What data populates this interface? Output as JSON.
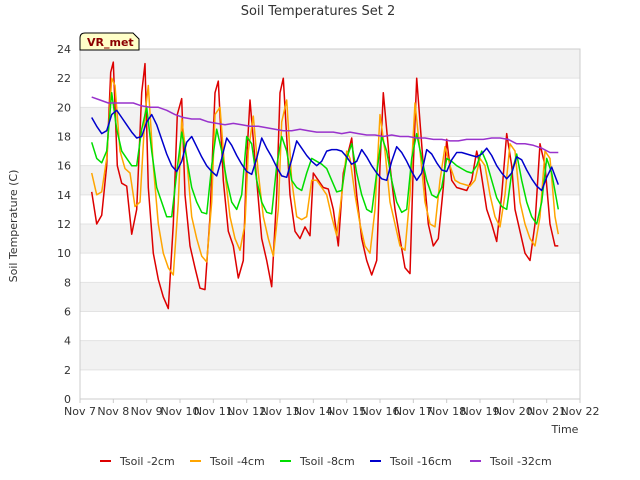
{
  "chart_data": {
    "type": "line",
    "title": "Soil Temperatures Set 2",
    "xlabel": "Time",
    "ylabel": "Soil Temperature (C)",
    "badge": "VR_met",
    "ylim": [
      0,
      24
    ],
    "yticks": [
      "0",
      "2",
      "4",
      "6",
      "8",
      "10",
      "12",
      "14",
      "16",
      "18",
      "20",
      "22",
      "24"
    ],
    "xticks": [
      "Nov 7",
      "Nov 8",
      "Nov 9",
      "Nov 10",
      "Nov 11",
      "Nov 12",
      "Nov 13",
      "Nov 14",
      "Nov 15",
      "Nov 16",
      "Nov 17",
      "Nov 18",
      "Nov 19",
      "Nov 20",
      "Nov 21",
      "Nov 22"
    ],
    "xlim": [
      7,
      22
    ],
    "grid": "horizontal-bands",
    "legend_position": "bottom",
    "series": [
      {
        "name": "Tsoil -2cm",
        "color": "#dd0000",
        "x": [
          7.35,
          7.5,
          7.65,
          7.8,
          7.92,
          8.0,
          8.12,
          8.25,
          8.4,
          8.55,
          8.7,
          8.85,
          8.95,
          9.05,
          9.2,
          9.35,
          9.5,
          9.65,
          9.8,
          9.92,
          10.05,
          10.15,
          10.3,
          10.45,
          10.6,
          10.75,
          10.9,
          11.05,
          11.15,
          11.3,
          11.45,
          11.6,
          11.75,
          11.9,
          12.0,
          12.1,
          12.3,
          12.45,
          12.6,
          12.75,
          12.9,
          13.0,
          13.1,
          13.3,
          13.45,
          13.6,
          13.75,
          13.9,
          14.0,
          14.15,
          14.3,
          14.45,
          14.6,
          14.75,
          14.9,
          15.0,
          15.15,
          15.3,
          15.45,
          15.6,
          15.75,
          15.9,
          16.0,
          16.1,
          16.3,
          16.45,
          16.6,
          16.75,
          16.9,
          17.0,
          17.1,
          17.3,
          17.45,
          17.6,
          17.75,
          17.9,
          18.0,
          18.15,
          18.3,
          18.45,
          18.6,
          18.75,
          18.9,
          19.0,
          19.2,
          19.35,
          19.5,
          19.65,
          19.8,
          19.95,
          20.05,
          20.2,
          20.35,
          20.5,
          20.65,
          20.8,
          20.95,
          21.1,
          21.25,
          21.35
        ],
        "y": [
          14.2,
          12.0,
          12.6,
          16.0,
          22.4,
          23.1,
          16.0,
          14.8,
          14.6,
          11.3,
          13.0,
          21.0,
          23.0,
          14.5,
          10.0,
          8.2,
          7.0,
          6.2,
          12.0,
          19.5,
          20.6,
          14.0,
          10.5,
          9.0,
          7.6,
          7.5,
          12.5,
          21.0,
          21.8,
          15.0,
          11.5,
          10.5,
          8.3,
          9.5,
          16.5,
          20.5,
          15.0,
          11.0,
          9.5,
          7.7,
          14.0,
          21.0,
          22.0,
          14.0,
          11.5,
          11.0,
          11.8,
          11.2,
          15.5,
          15.0,
          14.5,
          14.4,
          13.0,
          10.5,
          15.5,
          16.5,
          17.9,
          14.0,
          11.0,
          9.5,
          8.5,
          9.5,
          16.0,
          21.0,
          16.0,
          13.0,
          11.0,
          9.0,
          8.6,
          16.0,
          22.0,
          16.0,
          12.0,
          10.5,
          11.0,
          14.5,
          17.8,
          15.0,
          14.5,
          14.4,
          14.3,
          15.0,
          17.0,
          16.0,
          13.0,
          12.0,
          10.8,
          14.0,
          18.2,
          16.0,
          13.0,
          11.5,
          10.0,
          9.5,
          12.0,
          17.5,
          16.0,
          12.0,
          10.5,
          10.5
        ]
      },
      {
        "name": "Tsoil -4cm",
        "color": "#ffa500",
        "x": [
          7.35,
          7.5,
          7.65,
          7.8,
          7.95,
          8.05,
          8.2,
          8.35,
          8.5,
          8.65,
          8.8,
          8.95,
          9.05,
          9.2,
          9.35,
          9.5,
          9.65,
          9.8,
          9.95,
          10.05,
          10.2,
          10.35,
          10.5,
          10.65,
          10.8,
          10.95,
          11.05,
          11.2,
          11.35,
          11.5,
          11.65,
          11.8,
          11.95,
          12.05,
          12.2,
          12.35,
          12.5,
          12.65,
          12.8,
          12.95,
          13.05,
          13.2,
          13.35,
          13.5,
          13.65,
          13.8,
          13.95,
          14.1,
          14.25,
          14.4,
          14.55,
          14.7,
          14.85,
          15.0,
          15.1,
          15.25,
          15.4,
          15.55,
          15.7,
          15.85,
          16.0,
          16.15,
          16.3,
          16.45,
          16.6,
          16.75,
          16.9,
          17.05,
          17.2,
          17.35,
          17.5,
          17.65,
          17.8,
          17.95,
          18.1,
          18.25,
          18.4,
          18.55,
          18.7,
          18.85,
          19.0,
          19.15,
          19.3,
          19.45,
          19.6,
          19.75,
          19.9,
          20.05,
          20.2,
          20.35,
          20.5,
          20.65,
          20.8,
          20.95,
          21.1,
          21.25,
          21.35
        ],
        "y": [
          15.5,
          14.0,
          14.2,
          16.5,
          22.0,
          21.5,
          17.0,
          15.8,
          15.5,
          13.2,
          13.5,
          19.5,
          21.5,
          16.0,
          12.0,
          10.0,
          9.0,
          8.5,
          13.5,
          19.2,
          16.5,
          12.5,
          11.0,
          9.8,
          9.4,
          13.5,
          19.5,
          20.0,
          15.5,
          12.5,
          11.0,
          10.2,
          12.0,
          17.0,
          19.4,
          15.5,
          12.5,
          11.0,
          9.8,
          13.0,
          19.0,
          20.5,
          15.0,
          12.5,
          12.3,
          12.5,
          15.0,
          15.0,
          14.5,
          14.0,
          12.5,
          11.2,
          14.0,
          17.0,
          16.5,
          14.0,
          12.0,
          10.5,
          10.0,
          13.0,
          19.5,
          17.0,
          13.5,
          12.0,
          10.5,
          10.2,
          14.0,
          20.3,
          17.0,
          13.5,
          12.0,
          11.8,
          15.0,
          17.3,
          16.0,
          15.0,
          14.8,
          14.7,
          14.6,
          15.0,
          16.5,
          16.0,
          14.0,
          12.5,
          11.8,
          14.0,
          17.5,
          17.0,
          13.5,
          12.0,
          11.0,
          10.5,
          12.5,
          17.0,
          16.5,
          12.5,
          11.3
        ]
      },
      {
        "name": "Tsoil -8cm",
        "color": "#00dd00",
        "x": [
          7.35,
          7.5,
          7.65,
          7.8,
          7.95,
          8.1,
          8.25,
          8.4,
          8.55,
          8.7,
          8.85,
          9.0,
          9.15,
          9.3,
          9.45,
          9.6,
          9.75,
          9.9,
          10.05,
          10.2,
          10.35,
          10.5,
          10.65,
          10.8,
          10.95,
          11.1,
          11.25,
          11.4,
          11.55,
          11.7,
          11.85,
          12.0,
          12.15,
          12.3,
          12.45,
          12.6,
          12.75,
          12.9,
          13.05,
          13.2,
          13.35,
          13.5,
          13.65,
          13.8,
          13.95,
          14.1,
          14.25,
          14.4,
          14.55,
          14.7,
          14.85,
          15.0,
          15.15,
          15.3,
          15.45,
          15.6,
          15.75,
          15.9,
          16.05,
          16.2,
          16.35,
          16.5,
          16.65,
          16.8,
          16.95,
          17.1,
          17.25,
          17.4,
          17.55,
          17.7,
          17.85,
          18.0,
          18.15,
          18.3,
          18.45,
          18.6,
          18.75,
          18.9,
          19.05,
          19.2,
          19.35,
          19.5,
          19.65,
          19.8,
          19.95,
          20.1,
          20.25,
          20.4,
          20.55,
          20.7,
          20.85,
          21.0,
          21.15,
          21.35
        ],
        "y": [
          17.6,
          16.5,
          16.2,
          17.0,
          21.0,
          18.5,
          17.0,
          16.5,
          16.0,
          16.0,
          18.5,
          20.0,
          17.0,
          14.5,
          13.5,
          12.5,
          12.5,
          15.5,
          18.3,
          16.5,
          14.5,
          13.5,
          12.8,
          12.7,
          16.0,
          18.5,
          17.0,
          15.0,
          13.5,
          13.0,
          14.0,
          18.0,
          17.5,
          15.0,
          13.5,
          12.8,
          12.7,
          16.0,
          18.0,
          17.0,
          15.0,
          14.5,
          14.3,
          15.5,
          16.5,
          16.3,
          16.1,
          15.8,
          15.0,
          14.2,
          14.3,
          16.5,
          17.5,
          15.5,
          14.0,
          13.0,
          12.8,
          15.5,
          18.0,
          17.0,
          15.0,
          13.5,
          12.8,
          13.0,
          16.5,
          18.2,
          16.5,
          15.0,
          14.0,
          13.8,
          14.5,
          16.5,
          16.3,
          16.0,
          15.8,
          15.6,
          15.5,
          16.0,
          17.0,
          16.2,
          15.0,
          13.8,
          13.2,
          13.0,
          15.5,
          16.8,
          15.0,
          13.5,
          12.5,
          12.0,
          13.5,
          16.5,
          15.5,
          13.0
        ]
      },
      {
        "name": "Tsoil -16cm",
        "color": "#0000cc",
        "x": [
          7.35,
          7.5,
          7.65,
          7.8,
          7.95,
          8.1,
          8.25,
          8.4,
          8.55,
          8.7,
          8.85,
          9.0,
          9.15,
          9.3,
          9.45,
          9.6,
          9.75,
          9.9,
          10.05,
          10.2,
          10.35,
          10.5,
          10.65,
          10.8,
          10.95,
          11.1,
          11.25,
          11.4,
          11.55,
          11.7,
          11.85,
          12.0,
          12.15,
          12.3,
          12.45,
          12.6,
          12.75,
          12.9,
          13.05,
          13.2,
          13.35,
          13.5,
          13.65,
          13.8,
          13.95,
          14.1,
          14.25,
          14.4,
          14.55,
          14.7,
          14.85,
          15.0,
          15.15,
          15.3,
          15.45,
          15.6,
          15.75,
          15.9,
          16.05,
          16.2,
          16.35,
          16.5,
          16.65,
          16.8,
          16.95,
          17.1,
          17.25,
          17.4,
          17.55,
          17.7,
          17.85,
          18.0,
          18.15,
          18.3,
          18.45,
          18.6,
          18.75,
          18.9,
          19.05,
          19.2,
          19.35,
          19.5,
          19.65,
          19.8,
          19.95,
          20.1,
          20.25,
          20.4,
          20.55,
          20.7,
          20.85,
          21.0,
          21.15,
          21.35
        ],
        "y": [
          19.3,
          18.7,
          18.2,
          18.4,
          19.5,
          19.8,
          19.3,
          18.8,
          18.3,
          17.9,
          18.0,
          19.0,
          19.5,
          18.8,
          17.8,
          16.8,
          16.0,
          15.6,
          16.3,
          17.6,
          18.0,
          17.3,
          16.6,
          16.0,
          15.6,
          15.3,
          16.5,
          17.9,
          17.4,
          16.7,
          16.1,
          15.6,
          15.4,
          16.5,
          17.9,
          17.2,
          16.6,
          15.9,
          15.3,
          15.2,
          16.4,
          17.7,
          17.2,
          16.7,
          16.3,
          16.0,
          16.3,
          17.0,
          17.1,
          17.1,
          17.0,
          16.6,
          16.1,
          16.3,
          17.1,
          16.6,
          16.0,
          15.5,
          15.1,
          15.0,
          16.3,
          17.3,
          16.9,
          16.3,
          15.6,
          15.0,
          15.5,
          17.1,
          16.8,
          16.2,
          15.7,
          15.6,
          16.4,
          16.9,
          16.9,
          16.8,
          16.7,
          16.6,
          16.8,
          17.2,
          16.7,
          16.0,
          15.5,
          15.1,
          15.5,
          16.6,
          16.4,
          15.7,
          15.1,
          14.6,
          14.3,
          15.2,
          15.9,
          14.7
        ]
      },
      {
        "name": "Tsoil -32cm",
        "color": "#9932cc",
        "x": [
          7.35,
          7.6,
          7.85,
          8.1,
          8.35,
          8.6,
          8.85,
          9.1,
          9.35,
          9.6,
          9.85,
          10.1,
          10.35,
          10.6,
          10.85,
          11.1,
          11.35,
          11.6,
          11.85,
          12.1,
          12.35,
          12.6,
          12.85,
          13.1,
          13.35,
          13.6,
          13.85,
          14.1,
          14.35,
          14.6,
          14.85,
          15.1,
          15.35,
          15.6,
          15.85,
          16.1,
          16.35,
          16.6,
          16.85,
          17.1,
          17.35,
          17.6,
          17.85,
          18.1,
          18.35,
          18.6,
          18.85,
          19.1,
          19.35,
          19.6,
          19.85,
          20.1,
          20.35,
          20.6,
          20.85,
          21.1,
          21.35
        ],
        "y": [
          20.7,
          20.5,
          20.3,
          20.3,
          20.3,
          20.3,
          20.1,
          20.0,
          20.0,
          19.8,
          19.5,
          19.3,
          19.2,
          19.2,
          19.0,
          18.9,
          18.8,
          18.9,
          18.8,
          18.7,
          18.7,
          18.6,
          18.5,
          18.4,
          18.4,
          18.5,
          18.4,
          18.3,
          18.3,
          18.3,
          18.2,
          18.3,
          18.2,
          18.1,
          18.1,
          18.0,
          18.1,
          18.0,
          18.0,
          17.9,
          17.9,
          17.8,
          17.8,
          17.7,
          17.7,
          17.8,
          17.8,
          17.8,
          17.9,
          17.9,
          17.8,
          17.5,
          17.5,
          17.4,
          17.2,
          16.9,
          16.9
        ]
      }
    ]
  }
}
